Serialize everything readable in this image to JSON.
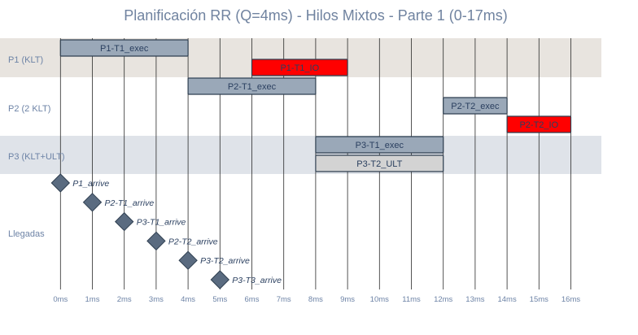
{
  "chart_data": {
    "type": "gantt",
    "title": "Planificación RR (Q=4ms) - Hilos Mixtos - Parte 1 (0-17ms)",
    "xlim": [
      0,
      17
    ],
    "xticks": [
      0,
      1,
      2,
      3,
      4,
      5,
      6,
      7,
      8,
      9,
      10,
      11,
      12,
      13,
      14,
      15,
      16
    ],
    "xtick_labels": [
      "0ms",
      "1ms",
      "2ms",
      "3ms",
      "4ms",
      "5ms",
      "6ms",
      "7ms",
      "8ms",
      "9ms",
      "10ms",
      "11ms",
      "12ms",
      "13ms",
      "14ms",
      "15ms",
      "16ms"
    ],
    "grid": true,
    "rows": [
      {
        "label": "P1 (KLT)",
        "band": "#e8e4df"
      },
      {
        "label": "P2 (2 KLT)",
        "band": "#ffffff"
      },
      {
        "label": "P3 (KLT+ULT)",
        "band": "#dfe3e9"
      },
      {
        "label": "Llegadas",
        "band": "#ffffff"
      }
    ],
    "bars": [
      {
        "label": "P1-T1_exec",
        "row": 0,
        "start": 0,
        "end": 4,
        "kind": "exec",
        "sub": 0
      },
      {
        "label": "P1-T1_IO",
        "row": 0,
        "start": 6,
        "end": 9,
        "kind": "io",
        "sub": 1
      },
      {
        "label": "P2-T1_exec",
        "row": 1,
        "start": 4,
        "end": 8,
        "kind": "exec",
        "sub": 0
      },
      {
        "label": "P2-T2_exec",
        "row": 1,
        "start": 12,
        "end": 14,
        "kind": "exec",
        "sub": 1
      },
      {
        "label": "P2-T2_IO",
        "row": 1,
        "start": 14,
        "end": 16,
        "kind": "io",
        "sub": 2
      },
      {
        "label": "P3-T1_exec",
        "row": 2,
        "start": 8,
        "end": 12,
        "kind": "exec",
        "sub": 0
      },
      {
        "label": "P3-T2_ULT",
        "row": 2,
        "start": 8,
        "end": 12,
        "kind": "ult",
        "sub": 1
      }
    ],
    "arrivals": [
      {
        "label": "P1_arrive",
        "t": 0
      },
      {
        "label": "P2-T1_arrive",
        "t": 1
      },
      {
        "label": "P3-T1_arrive",
        "t": 2
      },
      {
        "label": "P2-T2_arrive",
        "t": 3
      },
      {
        "label": "P3-T2_arrive",
        "t": 4
      },
      {
        "label": "P3-T3_arrive",
        "t": 5
      }
    ],
    "colors": {
      "exec": "#9aa8b8",
      "io": "#ff0000",
      "ult": "#d3d3d3",
      "bar_border": "#2f3f50",
      "marker": "#5a6b80",
      "grid": "#2a2a2a"
    }
  }
}
